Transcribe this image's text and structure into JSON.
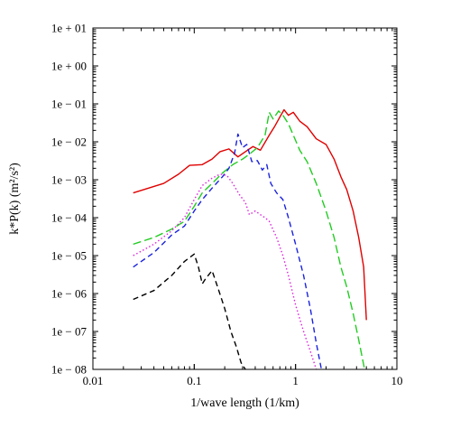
{
  "chart_data": {
    "type": "line",
    "xlabel": "1/wave length (1/km)",
    "ylabel": "k*P(k) (m²/s²)",
    "x_scale": "log",
    "y_scale": "log",
    "xlim": [
      0.01,
      10
    ],
    "ylim": [
      1e-08,
      10
    ],
    "x_ticks": [
      {
        "value": 0.01,
        "label": "0.01"
      },
      {
        "value": 0.1,
        "label": "0.1"
      },
      {
        "value": 1,
        "label": "1"
      },
      {
        "value": 10,
        "label": "10"
      }
    ],
    "y_ticks": [
      {
        "value": 1e-08,
        "label": "1e − 08"
      },
      {
        "value": 1e-07,
        "label": "1e − 07"
      },
      {
        "value": 1e-06,
        "label": "1e − 06"
      },
      {
        "value": 1e-05,
        "label": "1e − 05"
      },
      {
        "value": 0.0001,
        "label": "1e − 04"
      },
      {
        "value": 0.001,
        "label": "1e − 03"
      },
      {
        "value": 0.01,
        "label": "1e − 02"
      },
      {
        "value": 0.1,
        "label": "1e − 01"
      },
      {
        "value": 1,
        "label": "1e + 00"
      },
      {
        "value": 10,
        "label": "1e + 01"
      }
    ],
    "grid": false,
    "legend": "none",
    "series": [
      {
        "color": "#e00000",
        "dash": "solid",
        "points": [
          [
            0.025,
            0.00045
          ],
          [
            0.05,
            0.0008
          ],
          [
            0.07,
            0.0014
          ],
          [
            0.09,
            0.0024
          ],
          [
            0.12,
            0.0025
          ],
          [
            0.15,
            0.0035
          ],
          [
            0.18,
            0.0055
          ],
          [
            0.22,
            0.0065
          ],
          [
            0.27,
            0.004
          ],
          [
            0.32,
            0.0055
          ],
          [
            0.38,
            0.0075
          ],
          [
            0.45,
            0.006
          ],
          [
            0.55,
            0.015
          ],
          [
            0.62,
            0.025
          ],
          [
            0.7,
            0.045
          ],
          [
            0.77,
            0.07
          ],
          [
            0.85,
            0.05
          ],
          [
            0.95,
            0.06
          ],
          [
            1.1,
            0.035
          ],
          [
            1.3,
            0.025
          ],
          [
            1.6,
            0.012
          ],
          [
            2.0,
            0.0085
          ],
          [
            2.4,
            0.0035
          ],
          [
            2.8,
            0.0012
          ],
          [
            3.2,
            0.00055
          ],
          [
            3.7,
            0.00015
          ],
          [
            4.2,
            3e-05
          ],
          [
            4.7,
            5e-06
          ],
          [
            5.0,
            2e-07
          ]
        ]
      },
      {
        "color": "#22cc22",
        "dash": "long-dash",
        "points": [
          [
            0.025,
            2e-05
          ],
          [
            0.04,
            3e-05
          ],
          [
            0.06,
            5e-05
          ],
          [
            0.08,
            8e-05
          ],
          [
            0.1,
            0.0002
          ],
          [
            0.12,
            0.00045
          ],
          [
            0.15,
            0.0008
          ],
          [
            0.19,
            0.0015
          ],
          [
            0.24,
            0.0025
          ],
          [
            0.3,
            0.0035
          ],
          [
            0.36,
            0.005
          ],
          [
            0.42,
            0.007
          ],
          [
            0.5,
            0.015
          ],
          [
            0.55,
            0.06
          ],
          [
            0.6,
            0.04
          ],
          [
            0.68,
            0.065
          ],
          [
            0.75,
            0.05
          ],
          [
            0.85,
            0.03
          ],
          [
            0.95,
            0.015
          ],
          [
            1.1,
            0.006
          ],
          [
            1.3,
            0.003
          ],
          [
            1.6,
            0.0008
          ],
          [
            2.0,
            0.00015
          ],
          [
            2.4,
            3e-05
          ],
          [
            2.8,
            5e-06
          ],
          [
            3.2,
            1.5e-06
          ],
          [
            3.7,
            3e-07
          ],
          [
            4.2,
            6e-08
          ],
          [
            4.8,
            1e-08
          ]
        ]
      },
      {
        "color": "#1a22dd",
        "dash": "dash",
        "points": [
          [
            0.025,
            5e-06
          ],
          [
            0.04,
            1.2e-05
          ],
          [
            0.06,
            3.5e-05
          ],
          [
            0.08,
            6e-05
          ],
          [
            0.1,
            0.00015
          ],
          [
            0.12,
            0.0003
          ],
          [
            0.15,
            0.0006
          ],
          [
            0.19,
            0.0012
          ],
          [
            0.22,
            0.002
          ],
          [
            0.25,
            0.005
          ],
          [
            0.27,
            0.016
          ],
          [
            0.3,
            0.007
          ],
          [
            0.33,
            0.0085
          ],
          [
            0.37,
            0.003
          ],
          [
            0.42,
            0.0032
          ],
          [
            0.47,
            0.0018
          ],
          [
            0.52,
            0.0025
          ],
          [
            0.57,
            0.0008
          ],
          [
            0.65,
            0.00045
          ],
          [
            0.75,
            0.0003
          ],
          [
            0.85,
            0.0001
          ],
          [
            1.0,
            2e-05
          ],
          [
            1.2,
            3e-06
          ],
          [
            1.4,
            4e-07
          ],
          [
            1.6,
            5e-08
          ],
          [
            1.8,
            1e-08
          ]
        ]
      },
      {
        "color": "#dd22dd",
        "dash": "dot",
        "points": [
          [
            0.025,
            1e-05
          ],
          [
            0.04,
            2e-05
          ],
          [
            0.06,
            4.5e-05
          ],
          [
            0.08,
            0.0001
          ],
          [
            0.1,
            0.0003
          ],
          [
            0.12,
            0.0007
          ],
          [
            0.15,
            0.0011
          ],
          [
            0.18,
            0.0014
          ],
          [
            0.21,
            0.0013
          ],
          [
            0.24,
            0.0008
          ],
          [
            0.28,
            0.0004
          ],
          [
            0.32,
            0.00025
          ],
          [
            0.35,
            0.00012
          ],
          [
            0.4,
            0.00015
          ],
          [
            0.45,
            0.00012
          ],
          [
            0.5,
            0.0001
          ],
          [
            0.55,
            8e-05
          ],
          [
            0.65,
            3e-05
          ],
          [
            0.75,
            1e-05
          ],
          [
            0.85,
            3e-06
          ],
          [
            1.0,
            5e-07
          ],
          [
            1.2,
            1e-07
          ],
          [
            1.4,
            3e-08
          ],
          [
            1.6,
            1e-08
          ]
        ]
      },
      {
        "color": "#000000",
        "dash": "dash",
        "points": [
          [
            0.025,
            7e-07
          ],
          [
            0.04,
            1.2e-06
          ],
          [
            0.06,
            3e-06
          ],
          [
            0.08,
            7e-06
          ],
          [
            0.1,
            1.1e-05
          ],
          [
            0.11,
            5e-06
          ],
          [
            0.12,
            1.8e-06
          ],
          [
            0.13,
            2.5e-06
          ],
          [
            0.15,
            4e-06
          ],
          [
            0.17,
            1.5e-06
          ],
          [
            0.2,
            4e-07
          ],
          [
            0.23,
            1e-07
          ],
          [
            0.26,
            4e-08
          ],
          [
            0.29,
            1.5e-08
          ],
          [
            0.32,
            1e-08
          ]
        ]
      }
    ]
  }
}
